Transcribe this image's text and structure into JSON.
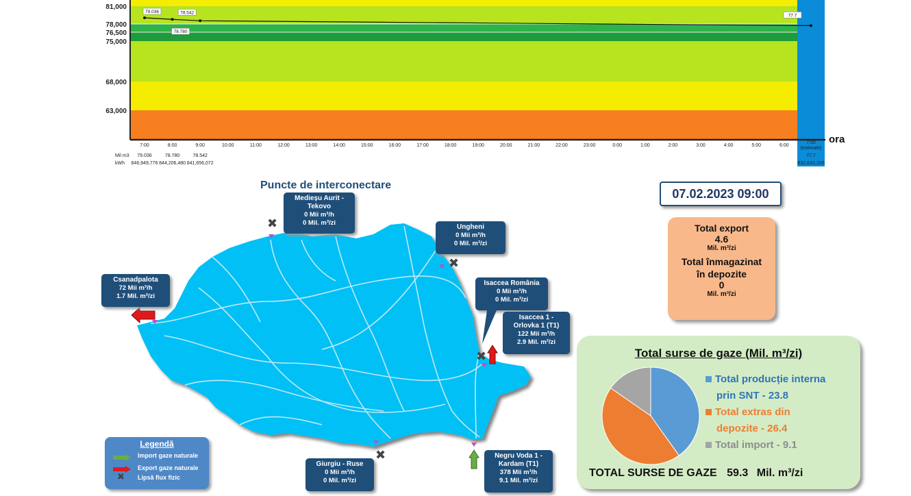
{
  "chart_data": {
    "type": "line",
    "y_ticks": [
      "81,000",
      "78,000",
      "76,500",
      "75,000",
      "68,000",
      "63,000"
    ],
    "y_tick_values": [
      81000,
      78000,
      76500,
      75000,
      68000,
      63000
    ],
    "ylim": [
      58000,
      83000
    ],
    "x_ticks": [
      "7:00",
      "8:00",
      "9:00",
      "10:00",
      "11:00",
      "12:00",
      "13:00",
      "14:00",
      "15:00",
      "16:00",
      "17:00",
      "18:00",
      "19:00",
      "20:00",
      "21:00",
      "22:00",
      "23:00",
      "0:00",
      "1:00",
      "2:00",
      "3:00",
      "4:00",
      "5:00",
      "6:00"
    ],
    "xlabel": "ora",
    "bands": [
      {
        "from": 81000,
        "to": 83000,
        "color": "#f5ed00"
      },
      {
        "from": 78000,
        "to": 81000,
        "color": "#b7e31f"
      },
      {
        "from": 76500,
        "to": 78000,
        "color": "#2eb34a"
      },
      {
        "from": 75000,
        "to": 76500,
        "color": "#1e9b3a"
      },
      {
        "from": 68000,
        "to": 75000,
        "color": "#b7e31f"
      },
      {
        "from": 63000,
        "to": 68000,
        "color": "#f5ed00"
      },
      {
        "from": 58000,
        "to": 63000,
        "color": "#f77f20"
      }
    ],
    "series": [
      {
        "points": [
          {
            "x": "7:00",
            "y": 79036,
            "label": "79.036"
          },
          {
            "x": "8:00",
            "y": 78780,
            "label": "78.780"
          },
          {
            "x": "9:00",
            "y": 78542,
            "label": "78.542"
          },
          {
            "x": "7:00 (estimate)",
            "y": 77700,
            "label": "77.7"
          }
        ]
      }
    ],
    "table": {
      "row_labels": [
        "Mil m3",
        "kWh"
      ],
      "mil_m3": [
        "79.036",
        "78.780",
        "78.542"
      ],
      "kwh": [
        "846,949,776",
        "844,206,480",
        "841,656,072"
      ]
    },
    "estimate_column": {
      "time": "7:00",
      "note": "(estimate)",
      "mil_m3": "77.7",
      "kwh": "832,633,200"
    }
  },
  "map": {
    "title": "Puncte de interconectare",
    "points": [
      {
        "name": "Mediesu",
        "title": "Medieșu Aurit - Tekovo",
        "flow1": "0",
        "unit1": "Mii  m³/h",
        "flow2": "0",
        "unit2": "Mil. m³/zi"
      },
      {
        "name": "Ungheni",
        "title": "Ungheni",
        "flow1": "0",
        "unit1": "Mii  m³/h",
        "flow2": "0",
        "unit2": "Mil. m³/zi"
      },
      {
        "name": "Csanadpalota",
        "title": "Csanadpalota",
        "flow1": "72",
        "unit1": "Mii  m³/h",
        "flow2": "1.7",
        "unit2": "Mil. m³/zi"
      },
      {
        "name": "IsacceaRomania",
        "title": "Isaccea România",
        "flow1": "0",
        "unit1": "Mii  m³/h",
        "flow2": "0",
        "unit2": "Mil. m³/zi"
      },
      {
        "name": "Isaccea1",
        "title": "Isaccea 1 - Orlovka 1 (T1)",
        "flow1": "122",
        "unit1": "Mii  m³/h",
        "flow2": "2.9",
        "unit2": "Mil. m³/zi"
      },
      {
        "name": "Giurgiu",
        "title": "Giurgiu - Ruse",
        "flow1": "0",
        "unit1": "Mii  m³/h",
        "flow2": "0",
        "unit2": "Mil. m³/zi"
      },
      {
        "name": "NegruVoda",
        "title": "Negru Voda 1 - Kardam (T1)",
        "flow1": "378",
        "unit1": "Mii  m³/h",
        "flow2": "9.1",
        "unit2": "Mil. m³/zi"
      }
    ]
  },
  "legend": {
    "title": "Legendă",
    "items": [
      "Import gaze naturale",
      "Export gaze naturale",
      "Lipsă flux fizic"
    ]
  },
  "datetime": "07.02.2023 09:00",
  "export_box": {
    "export_label": "Total export",
    "export_value": "4.6",
    "export_unit": "Mil. m³/zi",
    "storage_label1": "Total înmagazinat",
    "storage_label2": "în depozite",
    "storage_value": "0",
    "storage_unit": "Mil. m³/zi"
  },
  "sources": {
    "title": "Total surse de gaze  (Mil. m³/zi)",
    "slices": [
      {
        "label1": "Total producție interna",
        "label2": "prin SNT - 23.8",
        "value": 23.8,
        "color": "#5b9bd5",
        "text_color": "#2e75b6"
      },
      {
        "label1": "Total extras din",
        "label2": "depozite - 26.4",
        "value": 26.4,
        "color": "#ed7d31",
        "text_color": "#ed7d31"
      },
      {
        "label1": "Total import - 9.1",
        "label2": "",
        "value": 9.1,
        "color": "#a5a5a5",
        "text_color": "#8c8c8c"
      }
    ],
    "total_label": "TOTAL SURSE DE GAZE",
    "total_value": "59.3",
    "total_unit": "Mil. m³/zi"
  },
  "colors": {
    "dark_blue": "#1f4e79",
    "map_fill": "#00c0f5",
    "import_arrow": "#6aac46",
    "export_arrow": "#e0191b"
  }
}
